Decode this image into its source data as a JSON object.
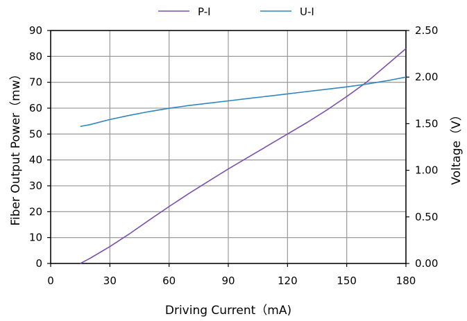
{
  "chart_data": {
    "type": "line",
    "title": "",
    "xlabel": "Driving Current（mA)",
    "ylabel": "Fiber Output Power（mw）",
    "y2label": "Voltage（V）",
    "xlim": [
      0,
      180
    ],
    "ylim": [
      0,
      90
    ],
    "y2lim": [
      0,
      2.5
    ],
    "grid": true,
    "legend_position": "top-center",
    "x_ticks": [
      "0",
      "30",
      "60",
      "90",
      "120",
      "150",
      "180"
    ],
    "y_ticks": [
      "0",
      "10",
      "20",
      "30",
      "40",
      "50",
      "60",
      "70",
      "80",
      "90"
    ],
    "y2_ticks": [
      "0.00",
      "0.50",
      "1.00",
      "1.50",
      "2.00",
      "2.50"
    ],
    "series": [
      {
        "name": "P-I",
        "axis": "left",
        "color": "#7b4fb0",
        "x": [
          15,
          20,
          30,
          40,
          50,
          60,
          70,
          80,
          90,
          100,
          110,
          120,
          130,
          140,
          150,
          160,
          170,
          180
        ],
        "y": [
          0,
          2,
          6.5,
          11.5,
          16.8,
          22,
          27,
          31.8,
          36.5,
          41,
          45.5,
          50,
          54.5,
          59.3,
          64.5,
          70,
          76.5,
          83
        ]
      },
      {
        "name": "U-I",
        "axis": "right",
        "color": "#2e86c1",
        "x": [
          15,
          20,
          30,
          40,
          50,
          60,
          70,
          80,
          90,
          100,
          110,
          120,
          130,
          140,
          150,
          160,
          170,
          180
        ],
        "y": [
          1.47,
          1.49,
          1.545,
          1.59,
          1.63,
          1.665,
          1.695,
          1.72,
          1.745,
          1.77,
          1.795,
          1.82,
          1.845,
          1.87,
          1.895,
          1.925,
          1.96,
          2.0
        ]
      }
    ]
  }
}
